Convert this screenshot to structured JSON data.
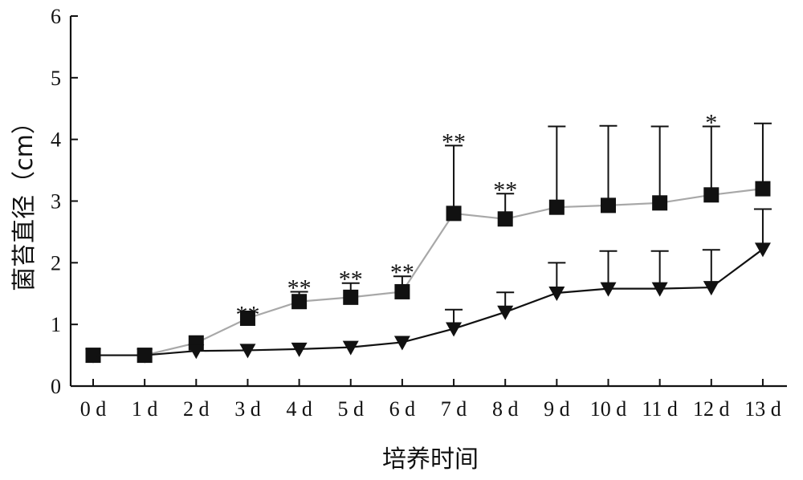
{
  "chart_data": {
    "type": "line",
    "xlabel": "培养时间",
    "ylabel": "菌苔直径（cm）",
    "categories": [
      "0 d",
      "1 d",
      "2 d",
      "3 d",
      "4 d",
      "5 d",
      "6 d",
      "7 d",
      "8 d",
      "9 d",
      "10 d",
      "11 d",
      "12 d",
      "13 d"
    ],
    "yticks": [
      "0",
      "1",
      "2",
      "3",
      "4",
      "5",
      "6"
    ],
    "ylim": [
      0,
      6
    ],
    "grid": false,
    "legend": "none",
    "series": [
      {
        "marker": "square",
        "line_color": "#a8a8a8",
        "marker_color": "#111111",
        "values": [
          0.5,
          0.5,
          0.7,
          1.1,
          1.37,
          1.44,
          1.53,
          2.8,
          2.71,
          2.9,
          2.93,
          2.97,
          3.1,
          3.2
        ],
        "error_upper": [
          0.5,
          0.5,
          0.7,
          1.1,
          1.53,
          1.67,
          1.78,
          3.9,
          3.12,
          4.21,
          4.22,
          4.21,
          4.21,
          4.26
        ]
      },
      {
        "marker": "triangle-down",
        "line_color": "#111111",
        "marker_color": "#111111",
        "values": [
          0.5,
          0.5,
          0.57,
          0.58,
          0.6,
          0.63,
          0.71,
          0.93,
          1.2,
          1.51,
          1.58,
          1.58,
          1.6,
          2.22
        ],
        "error_upper": [
          0.5,
          0.5,
          0.57,
          0.58,
          0.6,
          0.63,
          0.71,
          1.24,
          1.52,
          2.0,
          2.19,
          2.19,
          2.21,
          2.87
        ]
      }
    ],
    "annotations": [
      {
        "category": "3 d",
        "text": "**"
      },
      {
        "category": "4 d",
        "text": "**"
      },
      {
        "category": "5 d",
        "text": "**"
      },
      {
        "category": "6 d",
        "text": "**"
      },
      {
        "category": "7 d",
        "text": "**"
      },
      {
        "category": "8 d",
        "text": "**"
      },
      {
        "category": "12 d",
        "text": "*"
      }
    ]
  }
}
